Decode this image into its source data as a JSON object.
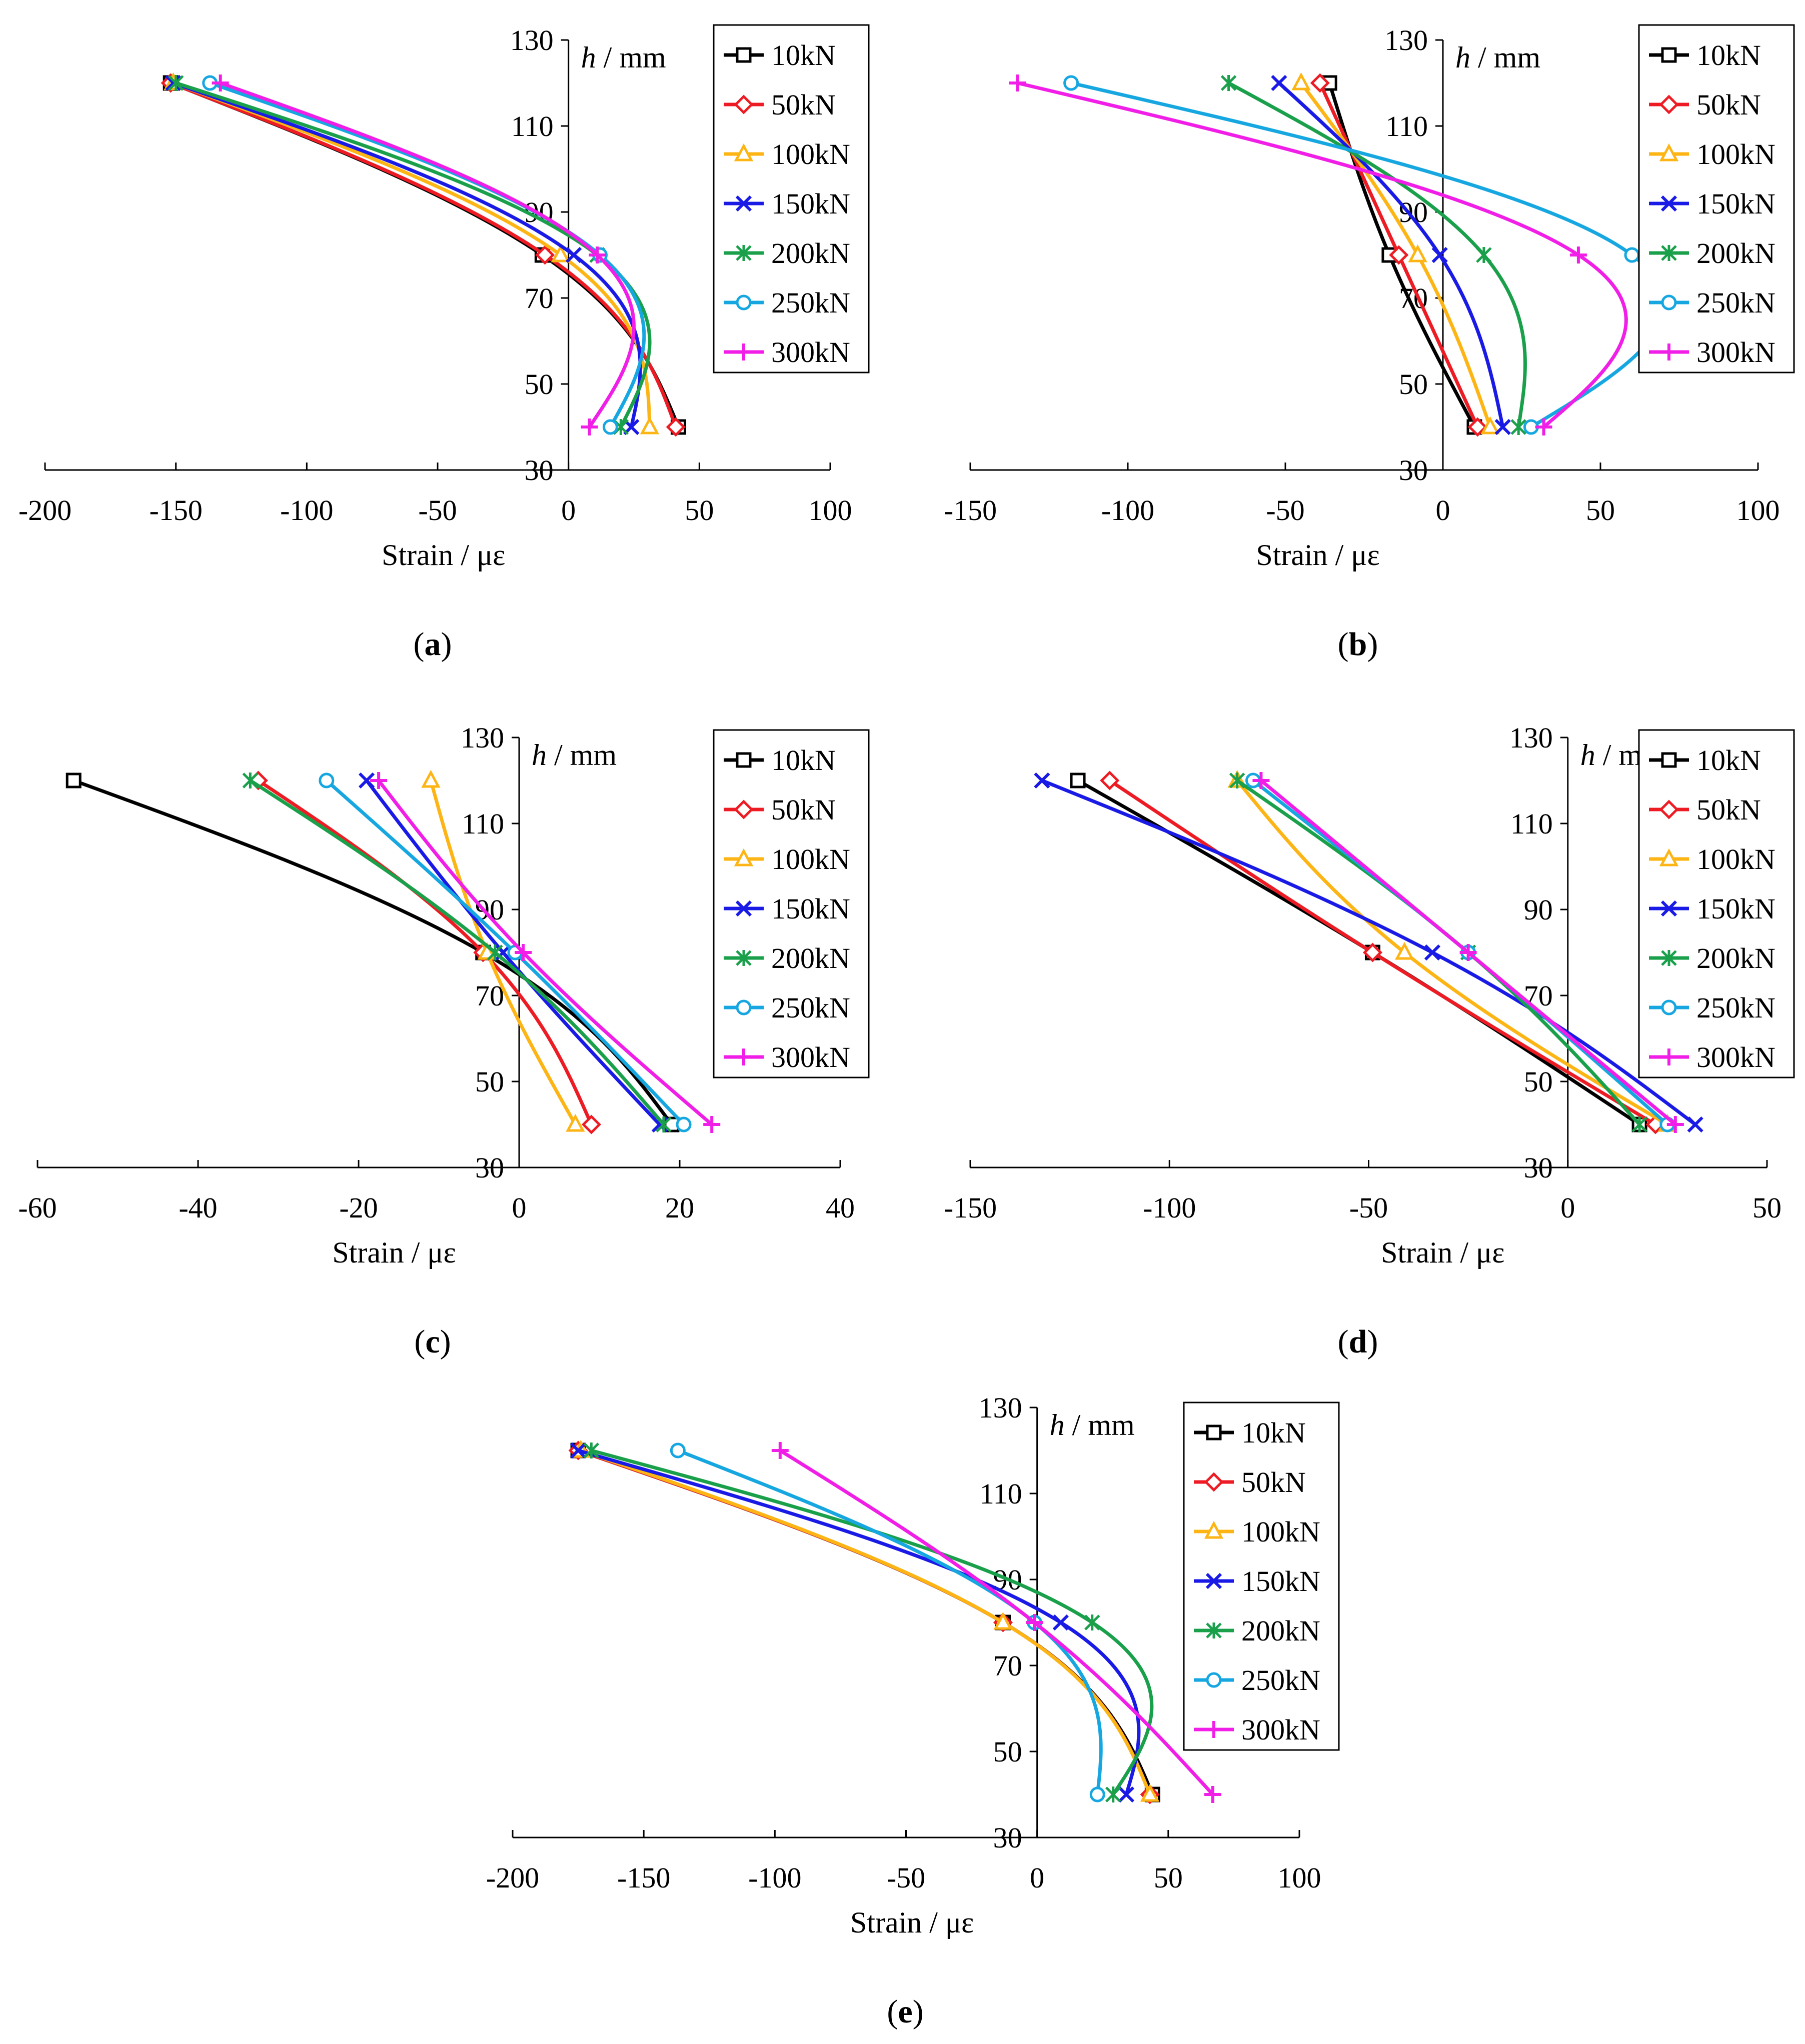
{
  "legend_entries": [
    "10kN",
    "50kN",
    "100kN",
    "150kN",
    "200kN",
    "250kN",
    "300kN"
  ],
  "series_colors": [
    "#000000",
    "#ED1C24",
    "#FDB515",
    "#1A1AE6",
    "#1AA04B",
    "#16A7E0",
    "#F01EE6"
  ],
  "series_markers": [
    "square",
    "diamond",
    "triangle",
    "x",
    "asterisk",
    "circle",
    "plus"
  ],
  "heights": [
    120,
    80,
    40
  ],
  "chart_data": [
    {
      "id": "a",
      "type": "line",
      "caption": "(a)",
      "xlabel": "Strain / με",
      "ylabel_italic": "h",
      "ylabel_rest": " / mm",
      "xlim": [
        -200,
        100
      ],
      "ylim": [
        30,
        130
      ],
      "xticks": [
        "-200",
        "-150",
        "-100",
        "-50",
        "0",
        "50",
        "100"
      ],
      "yticks": [
        "130",
        "110",
        "90",
        "70",
        "50",
        "30"
      ],
      "series": [
        {
          "name": "10kN",
          "strain": [
            -152,
            -10,
            42
          ]
        },
        {
          "name": "50kN",
          "strain": [
            -152,
            -9,
            41
          ]
        },
        {
          "name": "100kN",
          "strain": [
            -151,
            -3,
            31
          ]
        },
        {
          "name": "150kN",
          "strain": [
            -151,
            2,
            24
          ]
        },
        {
          "name": "200kN",
          "strain": [
            -150,
            11,
            20
          ]
        },
        {
          "name": "250kN",
          "strain": [
            -137,
            12,
            16
          ]
        },
        {
          "name": "300kN",
          "strain": [
            -133,
            11,
            8
          ]
        }
      ]
    },
    {
      "id": "b",
      "type": "line",
      "caption": "(b)",
      "xlabel": "Strain / με",
      "ylabel_italic": "h",
      "ylabel_rest": " / mm",
      "xlim": [
        -150,
        100
      ],
      "ylim": [
        30,
        130
      ],
      "xticks": [
        "-150",
        "-100",
        "-50",
        "0",
        "50",
        "100"
      ],
      "yticks": [
        "130",
        "110",
        "90",
        "70",
        "50",
        "30"
      ],
      "series": [
        {
          "name": "10kN",
          "strain": [
            -36,
            -17,
            10
          ]
        },
        {
          "name": "50kN",
          "strain": [
            -39,
            -14,
            11
          ]
        },
        {
          "name": "100kN",
          "strain": [
            -45,
            -8,
            15
          ]
        },
        {
          "name": "150kN",
          "strain": [
            -52,
            -1,
            19
          ]
        },
        {
          "name": "200kN",
          "strain": [
            -68,
            13,
            24
          ]
        },
        {
          "name": "250kN",
          "strain": [
            -118,
            60,
            28
          ]
        },
        {
          "name": "300kN",
          "strain": [
            -135,
            43,
            32
          ]
        }
      ]
    },
    {
      "id": "c",
      "type": "line",
      "caption": "(c)",
      "xlabel": "Strain / με",
      "ylabel_italic": "h",
      "ylabel_rest": " / mm",
      "xlim": [
        -60,
        40
      ],
      "ylim": [
        30,
        130
      ],
      "xticks": [
        "-60",
        "-40",
        "-20",
        "0",
        "20",
        "40"
      ],
      "yticks": [
        "130",
        "110",
        "90",
        "70",
        "50",
        "30"
      ],
      "series": [
        {
          "name": "10kN",
          "strain": [
            -55.5,
            -4.5,
            19
          ]
        },
        {
          "name": "50kN",
          "strain": [
            -32.5,
            -4.5,
            9
          ]
        },
        {
          "name": "100kN",
          "strain": [
            -11,
            -4,
            7
          ]
        },
        {
          "name": "150kN",
          "strain": [
            -19,
            -2,
            17.5
          ]
        },
        {
          "name": "200kN",
          "strain": [
            -33.5,
            -3,
            18
          ]
        },
        {
          "name": "250kN",
          "strain": [
            -24,
            -0.5,
            20.5
          ]
        },
        {
          "name": "300kN",
          "strain": [
            -17.5,
            0.5,
            24
          ]
        }
      ]
    },
    {
      "id": "d",
      "type": "line",
      "caption": "(d)",
      "xlabel": "Strain / με",
      "ylabel_italic": "h",
      "ylabel_rest": " / mm",
      "xlim": [
        -150,
        50
      ],
      "ylim": [
        30,
        130
      ],
      "xticks": [
        "-150",
        "-100",
        "-50",
        "0",
        "50"
      ],
      "yticks": [
        "130",
        "110",
        "90",
        "70",
        "50",
        "30"
      ],
      "series": [
        {
          "name": "10kN",
          "strain": [
            -123,
            -49,
            18
          ]
        },
        {
          "name": "50kN",
          "strain": [
            -115,
            -49,
            22
          ]
        },
        {
          "name": "100kN",
          "strain": [
            -83,
            -41,
            25
          ]
        },
        {
          "name": "150kN",
          "strain": [
            -132,
            -34,
            32
          ]
        },
        {
          "name": "200kN",
          "strain": [
            -83,
            -25,
            18
          ]
        },
        {
          "name": "250kN",
          "strain": [
            -79,
            -25,
            25
          ]
        },
        {
          "name": "300kN",
          "strain": [
            -77,
            -25,
            27
          ]
        }
      ]
    },
    {
      "id": "e",
      "type": "line",
      "caption": "(e)",
      "xlabel": "Strain / με",
      "ylabel_italic": "h",
      "ylabel_rest": " / mm",
      "xlim": [
        -200,
        100
      ],
      "ylim": [
        30,
        130
      ],
      "xticks": [
        "-200",
        "-150",
        "-100",
        "-50",
        "0",
        "50",
        "100"
      ],
      "yticks": [
        "130",
        "110",
        "90",
        "70",
        "50",
        "30"
      ],
      "series": [
        {
          "name": "10kN",
          "strain": [
            -175,
            -13,
            44
          ]
        },
        {
          "name": "50kN",
          "strain": [
            -175,
            -13,
            43
          ]
        },
        {
          "name": "100kN",
          "strain": [
            -174,
            -13,
            43
          ]
        },
        {
          "name": "150kN",
          "strain": [
            -175,
            9,
            34
          ]
        },
        {
          "name": "200kN",
          "strain": [
            -170,
            21,
            29
          ]
        },
        {
          "name": "250kN",
          "strain": [
            -137,
            -1,
            23
          ]
        },
        {
          "name": "300kN",
          "strain": [
            -98,
            -1,
            67
          ]
        }
      ]
    }
  ]
}
